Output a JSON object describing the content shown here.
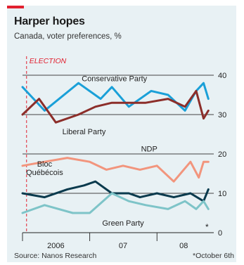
{
  "title": "Harper hopes",
  "subtitle": "Canada, voter preferences, %",
  "source": "Source: Nanos Research",
  "footnote": "*October 6th",
  "chart_data": {
    "type": "line",
    "title": "Harper hopes",
    "subtitle": "Canada, voter preferences, %",
    "ylim": [
      0,
      40
    ],
    "y_ticks": [
      0,
      10,
      20,
      30,
      40
    ],
    "y_axis_side": "right",
    "x_ticks": [
      "2006",
      "07",
      "08"
    ],
    "x_range": [
      "2006-01-01",
      "2008-10-20"
    ],
    "grid": "horizontal",
    "annotations": [
      {
        "text": "ELECTION",
        "x": "2006-01-23",
        "style": "dashed-vertical-red"
      },
      {
        "text": "*",
        "x": "2008-10-06"
      }
    ],
    "series": [
      {
        "name": "Conservative Party",
        "color": "#1aa0d8",
        "x": [
          "2006-01-01",
          "2006-05-01",
          "2006-11-01",
          "2007-03-01",
          "2007-05-01",
          "2007-08-01",
          "2007-12-01",
          "2008-03-01",
          "2008-06-01",
          "2008-08-01",
          "2008-09-10",
          "2008-10-06"
        ],
        "values": [
          37,
          31,
          38,
          34,
          37,
          32,
          36,
          35,
          31,
          36,
          38,
          34
        ]
      },
      {
        "name": "Liberal Party",
        "color": "#8c2e2a",
        "x": [
          "2006-01-01",
          "2006-04-01",
          "2006-07-01",
          "2006-11-01",
          "2007-02-01",
          "2007-05-01",
          "2007-11-01",
          "2008-03-01",
          "2008-06-01",
          "2008-08-01",
          "2008-09-10",
          "2008-10-06"
        ],
        "values": [
          30,
          34,
          28,
          30,
          32,
          33,
          33,
          34,
          32,
          36,
          29,
          31
        ]
      },
      {
        "name": "NDP",
        "color": "#f2957d",
        "x": [
          "2006-01-01",
          "2006-05-01",
          "2006-09-01",
          "2007-01-01",
          "2007-04-01",
          "2007-07-01",
          "2007-10-01",
          "2008-01-01",
          "2008-04-01",
          "2008-07-01",
          "2008-08-15",
          "2008-09-10",
          "2008-10-06"
        ],
        "values": [
          17,
          18,
          19,
          18,
          16,
          17,
          16,
          17,
          13,
          18,
          14,
          18,
          18
        ]
      },
      {
        "name": "Bloc Québécois",
        "color": "#0a3a4d",
        "x": [
          "2006-01-01",
          "2006-05-01",
          "2006-09-01",
          "2006-12-01",
          "2007-02-01",
          "2007-05-01",
          "2007-08-01",
          "2007-10-01",
          "2008-01-01",
          "2008-04-01",
          "2008-07-01",
          "2008-09-10",
          "2008-10-06"
        ],
        "values": [
          10,
          9,
          11,
          12,
          13,
          10,
          10,
          9,
          10,
          9,
          10,
          8,
          11
        ]
      },
      {
        "name": "Green Party",
        "color": "#7ec4c8",
        "x": [
          "2006-01-01",
          "2006-05-01",
          "2006-10-01",
          "2007-01-01",
          "2007-05-01",
          "2007-08-01",
          "2007-11-01",
          "2008-03-01",
          "2008-06-01",
          "2008-08-01",
          "2008-09-10",
          "2008-10-06"
        ],
        "values": [
          5,
          7,
          5,
          5,
          10,
          8,
          7,
          6,
          8,
          6,
          8,
          6
        ]
      }
    ]
  }
}
